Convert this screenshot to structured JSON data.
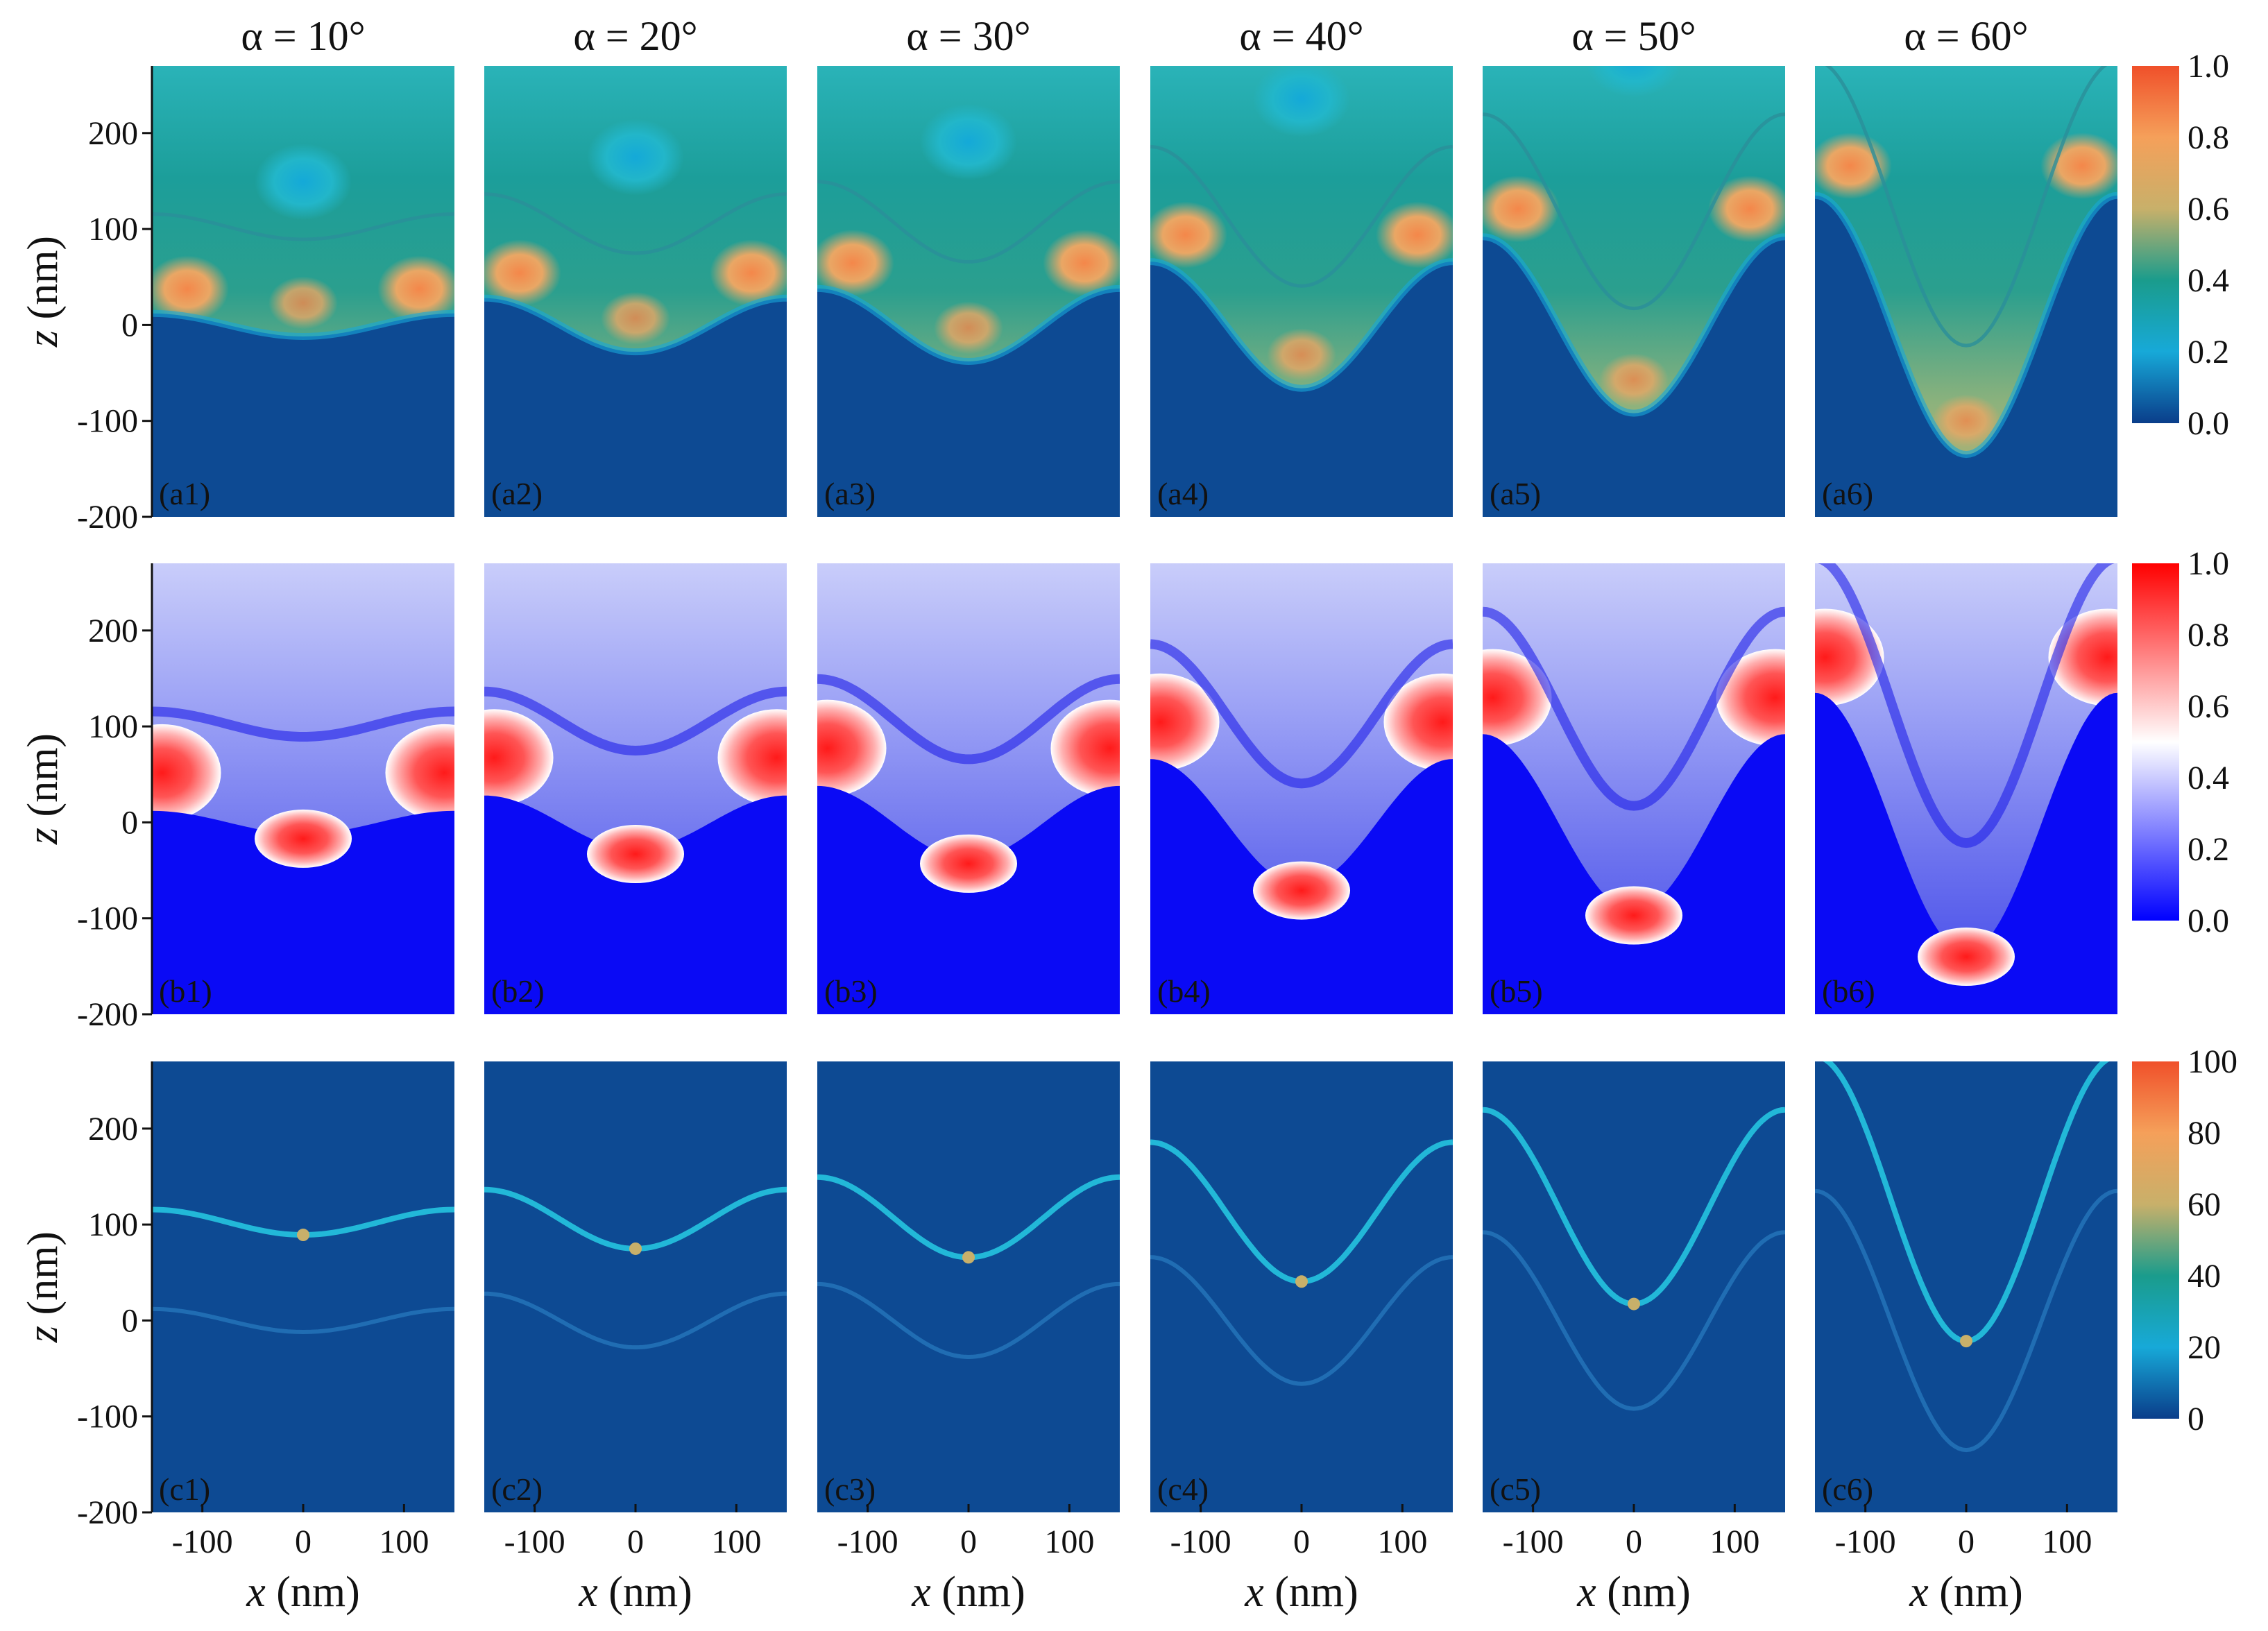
{
  "chart_data": {
    "type": "heatmap",
    "description_grid": "3 rows x 6 columns of field maps",
    "columns": [
      {
        "title": "α = 10°",
        "alpha": 10,
        "amplitude": 12
      },
      {
        "title": "α = 20°",
        "alpha": 20,
        "amplitude": 28
      },
      {
        "title": "α = 30°",
        "alpha": 30,
        "amplitude": 38
      },
      {
        "title": "α = 40°",
        "alpha": 40,
        "amplitude": 66
      },
      {
        "title": "α = 50°",
        "alpha": 50,
        "amplitude": 92
      },
      {
        "title": "α = 60°",
        "alpha": 60,
        "amplitude": 135
      }
    ],
    "rows": [
      {
        "id": "a",
        "panel_labels": [
          "(a1)",
          "(a2)",
          "(a3)",
          "(a4)",
          "(a5)",
          "(a6)"
        ],
        "colormap": "parula_like",
        "colorbar_ticks": [
          "1.0",
          "0.8",
          "0.6",
          "0.4",
          "0.2",
          "0.0"
        ],
        "colorbar_range": [
          0,
          1
        ],
        "colormap_stops": [
          "#0a3d8a",
          "#17a9d8",
          "#1a9c8c",
          "#c8b06a",
          "#f5a05a",
          "#f0502a"
        ]
      },
      {
        "id": "b",
        "panel_labels": [
          "(b1)",
          "(b2)",
          "(b3)",
          "(b4)",
          "(b5)",
          "(b6)"
        ],
        "colormap": "bwr",
        "colorbar_ticks": [
          "1.0",
          "0.8",
          "0.6",
          "0.4",
          "0.2",
          "0.0"
        ],
        "colorbar_range": [
          0,
          1
        ],
        "colormap_stops": [
          "#0000ff",
          "#7f7fff",
          "#ffffff",
          "#ff7f7f",
          "#ff0000"
        ]
      },
      {
        "id": "c",
        "panel_labels": [
          "(c1)",
          "(c2)",
          "(c3)",
          "(c4)",
          "(c5)",
          "(c6)"
        ],
        "colormap": "parula_like",
        "colorbar_ticks": [
          "100",
          "80",
          "60",
          "40",
          "20",
          "0"
        ],
        "colorbar_range": [
          0,
          100
        ],
        "colormap_stops": [
          "#0a3d8a",
          "#17a9d8",
          "#1a9c8c",
          "#c8b06a",
          "#f5a05a",
          "#f0502a"
        ]
      }
    ],
    "x_axis": {
      "label_var": "x",
      "label_unit": " (nm)",
      "range": [
        -150,
        150
      ],
      "ticks": [
        -100,
        0,
        100
      ],
      "tick_labels": [
        "-100",
        "0",
        "100"
      ]
    },
    "z_axis": {
      "label_var": "z",
      "label_unit": " (nm)",
      "range": [
        -200,
        270
      ],
      "ticks": [
        200,
        100,
        0,
        -100,
        -200
      ],
      "tick_labels": [
        "200",
        "100",
        "0",
        "-100",
        "-200"
      ]
    },
    "interface_offsets_nm": {
      "lower_mean": 0,
      "upper_gap": 100
    }
  }
}
